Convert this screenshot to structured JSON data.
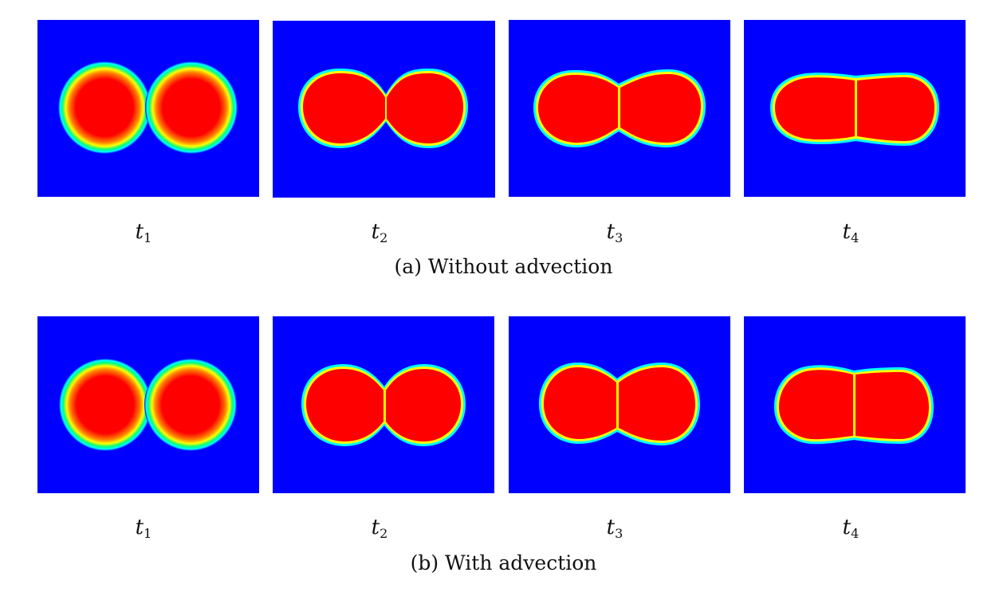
{
  "rows": [
    {
      "caption": "(a) Without advection",
      "frames": [
        {
          "label_var": "t",
          "label_sub": "1",
          "stage": "separate"
        },
        {
          "label_var": "t",
          "label_sub": "2",
          "stage": "neck"
        },
        {
          "label_var": "t",
          "label_sub": "3",
          "stage": "merging"
        },
        {
          "label_var": "t",
          "label_sub": "4",
          "stage": "merged"
        }
      ]
    },
    {
      "caption": "(b) With advection",
      "frames": [
        {
          "label_var": "t",
          "label_sub": "1",
          "stage": "separate"
        },
        {
          "label_var": "t",
          "label_sub": "2",
          "stage": "neck"
        },
        {
          "label_var": "t",
          "label_sub": "3",
          "stage": "merging"
        },
        {
          "label_var": "t",
          "label_sub": "4",
          "stage": "merged"
        }
      ]
    }
  ],
  "colors": {
    "background_phase": "#0000ff",
    "droplet_phase": "#ff0000",
    "interface_yellow": "#ffff00",
    "interface_green": "#00ff80",
    "interface_cyan": "#00ffff"
  }
}
